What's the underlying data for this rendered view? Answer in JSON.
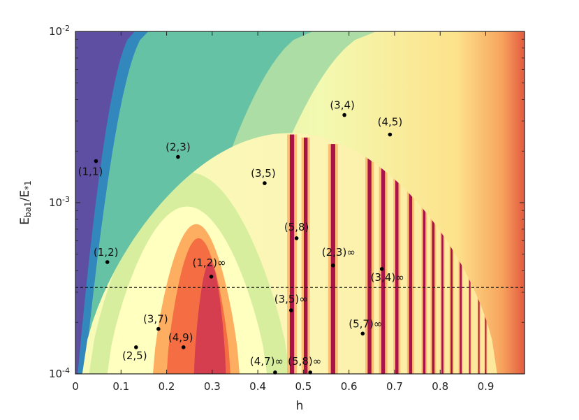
{
  "chart_data": {
    "type": "heatmap",
    "title": "",
    "xlabel": "h",
    "ylabel": {
      "main": "E",
      "sub1": "ba1",
      "slash": "/E",
      "sub2": "*1"
    },
    "x_scale": "linear",
    "y_scale": "log",
    "xlim": [
      0,
      0.985
    ],
    "ylim": [
      0.0001,
      0.01
    ],
    "x_ticks": [
      {
        "value": 0,
        "label": "0"
      },
      {
        "value": 0.1,
        "label": "0.1"
      },
      {
        "value": 0.2,
        "label": "0.2"
      },
      {
        "value": 0.3,
        "label": "0.3"
      },
      {
        "value": 0.4,
        "label": "0.4"
      },
      {
        "value": 0.5,
        "label": "0.5"
      },
      {
        "value": 0.6,
        "label": "0.6"
      },
      {
        "value": 0.7,
        "label": "0.7"
      },
      {
        "value": 0.8,
        "label": "0.8"
      },
      {
        "value": 0.9,
        "label": "0.9"
      }
    ],
    "y_ticks": [
      {
        "value": 0.0001,
        "base": "10",
        "exp": "-4"
      },
      {
        "value": 0.001,
        "base": "10",
        "exp": "-3"
      },
      {
        "value": 0.01,
        "base": "10",
        "exp": "-2"
      }
    ],
    "grid": false,
    "colormap": [
      "#5e4fa2",
      "#3288bd",
      "#66c2a5",
      "#abdda4",
      "#e6f598",
      "#ffffbf",
      "#fee08b",
      "#fdae61",
      "#f46d43",
      "#d53e4f",
      "#9e0142"
    ],
    "reference_line": {
      "y": 0.00032,
      "style": "dashed"
    },
    "annotations": [
      {
        "label": "(1,1)",
        "x": 0.045,
        "y": 0.00175
      },
      {
        "label": "(2,3)",
        "x": 0.225,
        "y": 0.00185
      },
      {
        "label": "(3,4)",
        "x": 0.59,
        "y": 0.00325
      },
      {
        "label": "(4,5)",
        "x": 0.69,
        "y": 0.0025
      },
      {
        "label": "(3,5)",
        "x": 0.415,
        "y": 0.0013
      },
      {
        "label": "(5,8)",
        "x": 0.485,
        "y": 0.00062
      },
      {
        "label": "(1,2)",
        "x": 0.07,
        "y": 0.00045
      },
      {
        "label": "(1,2)∞",
        "x": 0.298,
        "y": 0.00037
      },
      {
        "label": "(2,3)∞",
        "x": 0.565,
        "y": 0.00043
      },
      {
        "label": "(3,4)∞",
        "x": 0.672,
        "y": 0.00041
      },
      {
        "label": "(3,5)∞",
        "x": 0.473,
        "y": 0.000235
      },
      {
        "label": "(5,7)∞",
        "x": 0.63,
        "y": 0.000172
      },
      {
        "label": "(3,7)",
        "x": 0.182,
        "y": 0.000183
      },
      {
        "label": "(4,9)",
        "x": 0.237,
        "y": 0.000143
      },
      {
        "label": "(2,5)",
        "x": 0.133,
        "y": 0.000143
      },
      {
        "label": "(4,7)∞",
        "x": 0.438,
        "y": 0.000102
      },
      {
        "label": "(5,8)∞",
        "x": 0.515,
        "y": 0.000102
      }
    ]
  }
}
